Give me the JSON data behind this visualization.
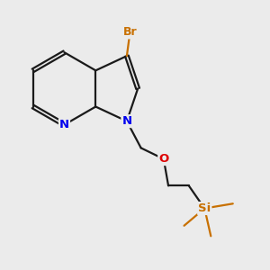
{
  "background_color": "#ebebeb",
  "bond_color": "#1a1a1a",
  "N_color": "#0000ee",
  "O_color": "#dd0000",
  "Br_color": "#c87000",
  "Si_color": "#c87000",
  "bond_lw": 1.6,
  "dbo": 0.055,
  "figsize": [
    3.0,
    3.0
  ],
  "dpi": 100,
  "xlim": [
    1.0,
    8.5
  ],
  "ylim": [
    0.5,
    9.0
  ]
}
